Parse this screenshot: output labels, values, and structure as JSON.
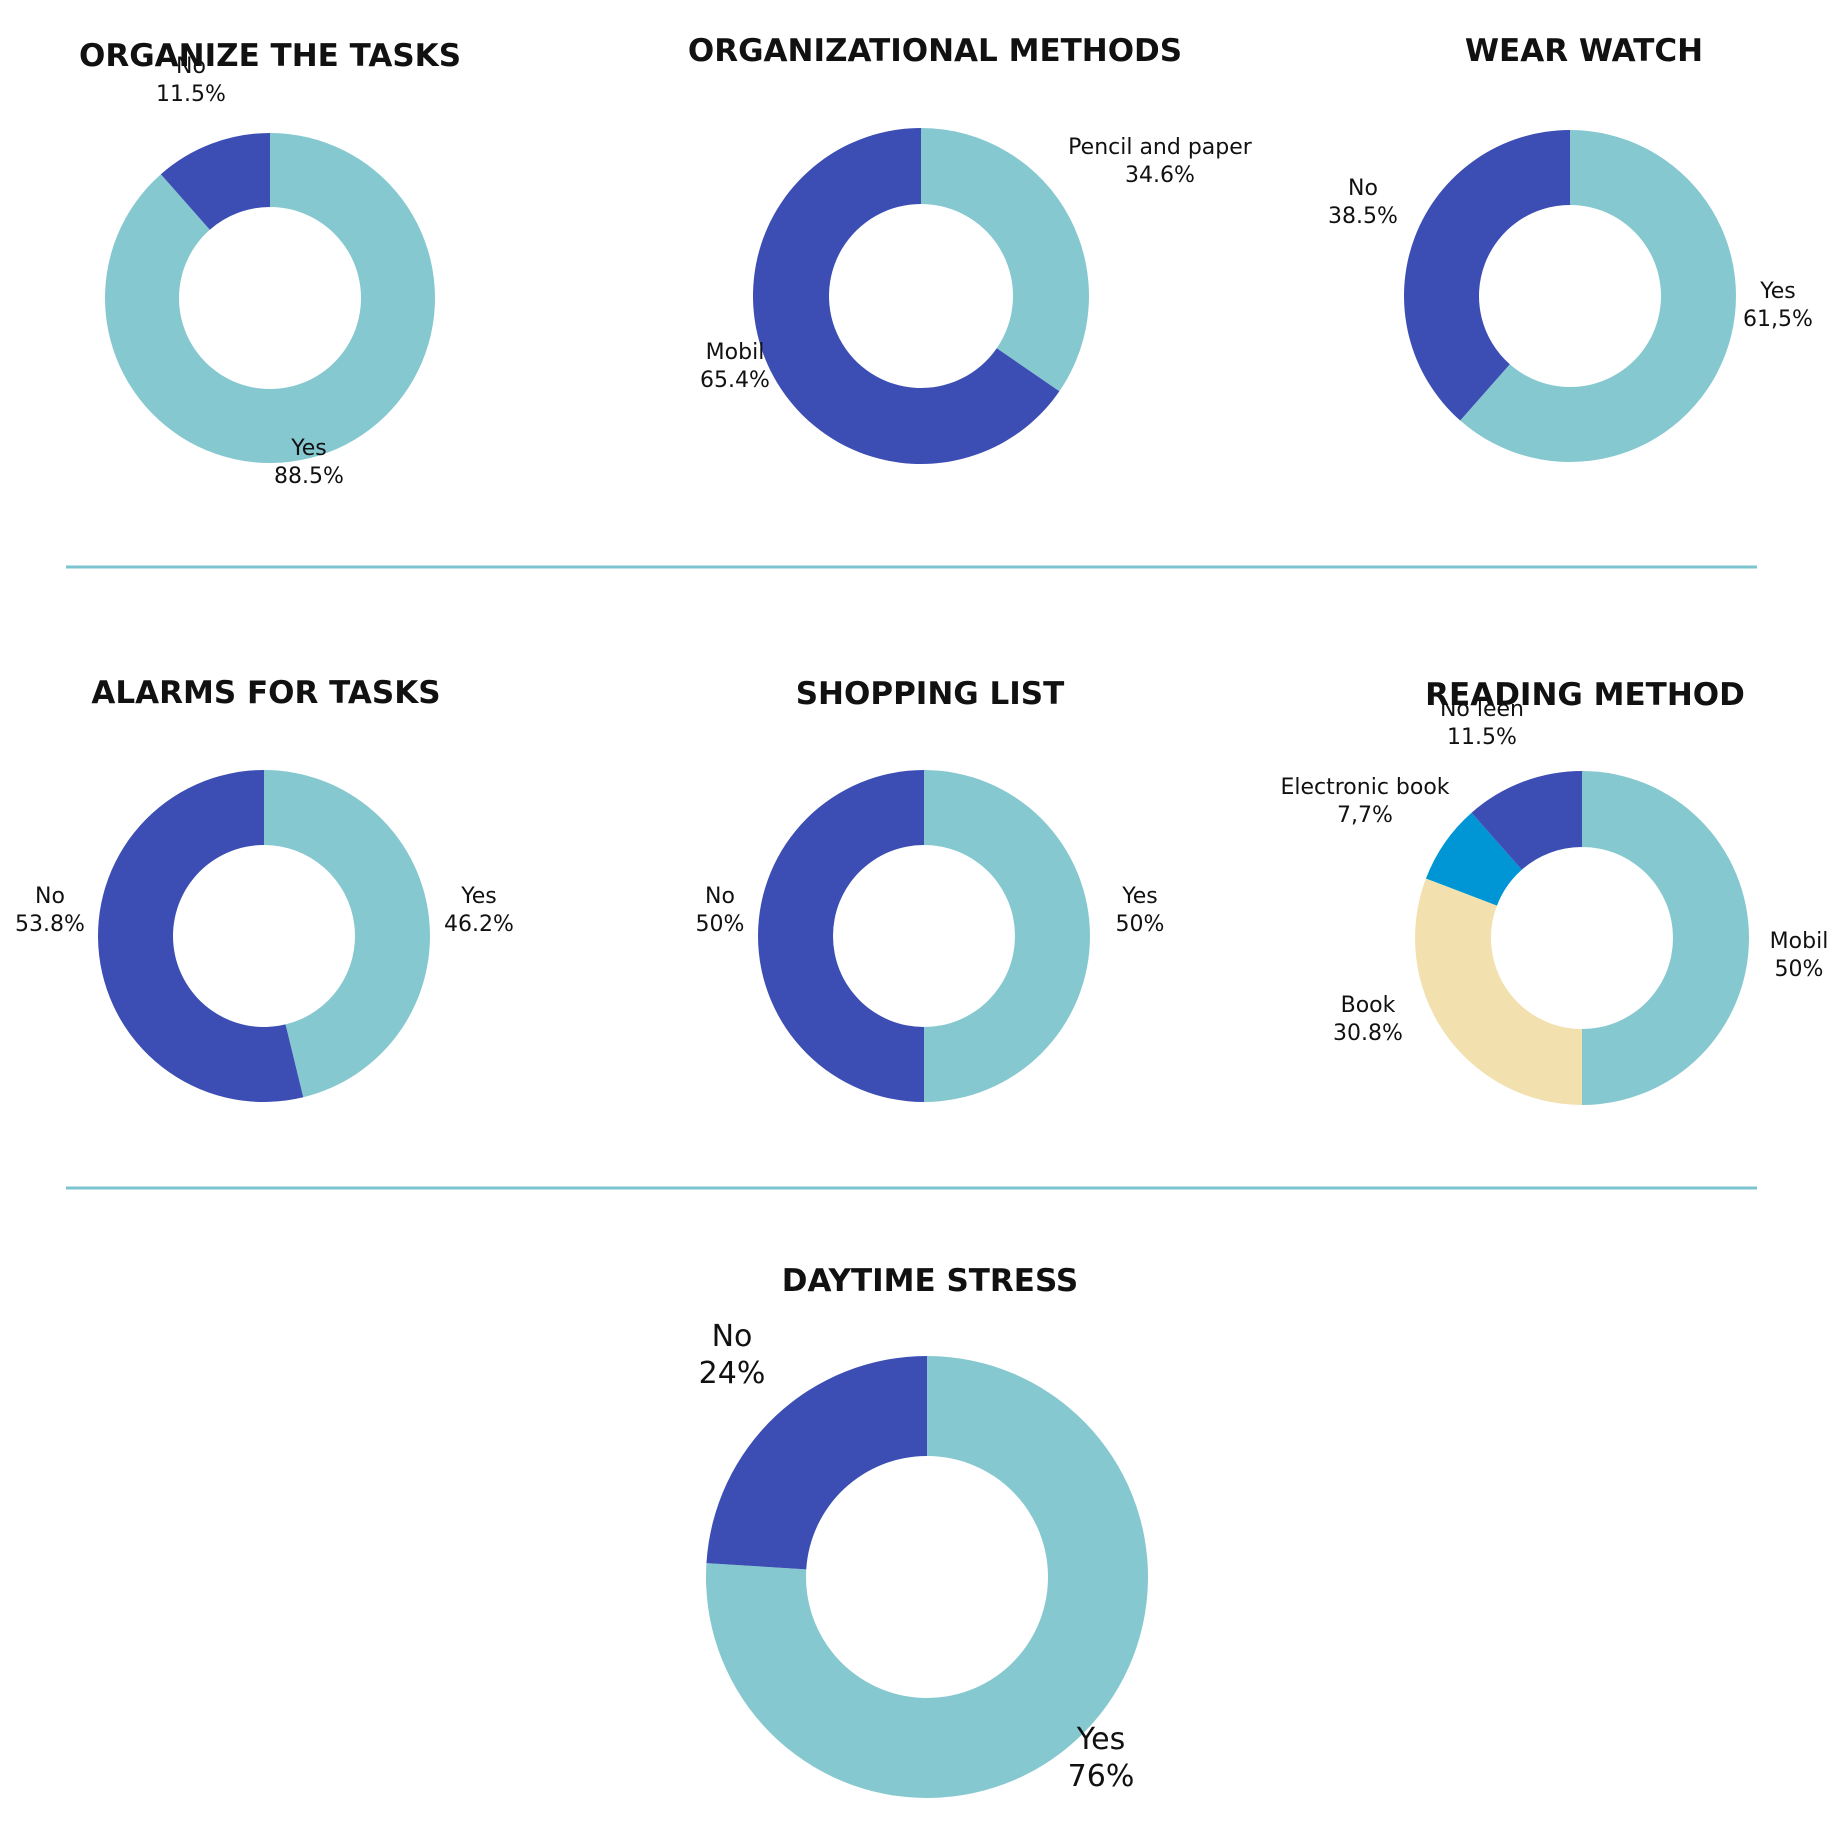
{
  "colors": {
    "yes": "#86C8D0",
    "no": "#3C4EB3",
    "electronic_book": "#0096D6",
    "book": "#F2E1AE",
    "divider": "#7CC4D0"
  },
  "chart_data": [
    {
      "type": "pie",
      "title": "ORGANIZE THE TASKS",
      "slices": [
        {
          "name": "Yes",
          "value": 88.5,
          "label": "88.5%",
          "color": "#86C8D0"
        },
        {
          "name": "No",
          "value": 11.5,
          "label": "11.5%",
          "color": "#3C4EB3"
        }
      ]
    },
    {
      "type": "pie",
      "title": "ORGANIZATIONAL METHODS",
      "slices": [
        {
          "name": "Pencil and paper",
          "value": 34.6,
          "label": "34.6%",
          "color": "#86C8D0"
        },
        {
          "name": "Mobil",
          "value": 65.4,
          "label": "65.4%",
          "color": "#3C4EB3"
        }
      ]
    },
    {
      "type": "pie",
      "title": "WEAR WATCH",
      "slices": [
        {
          "name": "Yes",
          "value": 61.5,
          "label": "61,5%",
          "color": "#86C8D0"
        },
        {
          "name": "No",
          "value": 38.5,
          "label": "38.5%",
          "color": "#3C4EB3"
        }
      ]
    },
    {
      "type": "pie",
      "title": "ALARMS FOR TASKS",
      "slices": [
        {
          "name": "Yes",
          "value": 46.2,
          "label": "46.2%",
          "color": "#86C8D0"
        },
        {
          "name": "No",
          "value": 53.8,
          "label": "53.8%",
          "color": "#3C4EB3"
        }
      ]
    },
    {
      "type": "pie",
      "title": "SHOPPING LIST",
      "slices": [
        {
          "name": "Yes",
          "value": 50,
          "label": "50%",
          "color": "#86C8D0"
        },
        {
          "name": "No",
          "value": 50,
          "label": "50%",
          "color": "#3C4EB3"
        }
      ]
    },
    {
      "type": "pie",
      "title": "READING METHOD",
      "slices": [
        {
          "name": "Mobil",
          "value": 50,
          "label": "50%",
          "color": "#86C8D0"
        },
        {
          "name": "Book",
          "value": 30.8,
          "label": "30.8%",
          "color": "#F2E1AE"
        },
        {
          "name": "Electronic book",
          "value": 7.7,
          "label": "7,7%",
          "color": "#0096D6"
        },
        {
          "name": "No leen",
          "value": 11.5,
          "label": "11.5%",
          "color": "#3C4EB3"
        }
      ]
    },
    {
      "type": "pie",
      "title": "DAYTIME STRESS",
      "slices": [
        {
          "name": "Yes",
          "value": 76,
          "label": "76%",
          "color": "#86C8D0"
        },
        {
          "name": "No",
          "value": 24,
          "label": "24%",
          "color": "#3C4EB3"
        }
      ]
    }
  ]
}
